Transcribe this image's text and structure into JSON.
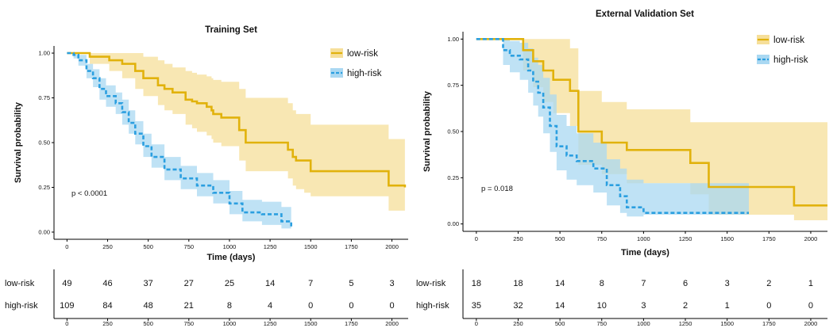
{
  "chart_data": [
    {
      "type": "line",
      "subtype": "kaplan-meier",
      "title": "Training Set",
      "xlabel": "Time (days)",
      "ylabel": "Survival probability",
      "xlim": [
        -80,
        2100
      ],
      "ylim": [
        -0.04,
        1.04
      ],
      "xticks": [
        0,
        250,
        500,
        750,
        1000,
        1250,
        1500,
        1750,
        2000
      ],
      "yticks": [
        "0.00",
        "0.25",
        "0.50",
        "0.75",
        "1.00"
      ],
      "xtick_labels": [
        "0",
        "250",
        "500",
        "750",
        "1000",
        "1250",
        "1500",
        "1750",
        "2000"
      ],
      "grid": false,
      "legend": "top-right",
      "annotation": "p < 0.0001",
      "series": [
        {
          "name": "low-risk",
          "color": "#e1b20c",
          "fill": "#f6df9a",
          "dash": false,
          "x": [
            0,
            90,
            140,
            260,
            340,
            420,
            470,
            560,
            600,
            650,
            730,
            770,
            800,
            860,
            890,
            900,
            950,
            1060,
            1100,
            1360,
            1390,
            1410,
            1460,
            1500,
            1980,
            2080
          ],
          "y": [
            1.0,
            1.0,
            0.98,
            0.96,
            0.94,
            0.9,
            0.86,
            0.82,
            0.8,
            0.78,
            0.74,
            0.73,
            0.72,
            0.7,
            0.68,
            0.66,
            0.64,
            0.57,
            0.5,
            0.46,
            0.42,
            0.4,
            0.4,
            0.34,
            0.26,
            0.25
          ],
          "lower": [
            1.0,
            1.0,
            0.94,
            0.9,
            0.86,
            0.8,
            0.76,
            0.71,
            0.68,
            0.66,
            0.6,
            0.58,
            0.56,
            0.54,
            0.52,
            0.5,
            0.48,
            0.4,
            0.34,
            0.3,
            0.26,
            0.24,
            0.22,
            0.2,
            0.12,
            0.12
          ],
          "upper": [
            1.0,
            1.0,
            1.0,
            1.0,
            1.0,
            1.0,
            0.98,
            0.96,
            0.94,
            0.92,
            0.9,
            0.89,
            0.88,
            0.87,
            0.86,
            0.85,
            0.84,
            0.8,
            0.75,
            0.72,
            0.68,
            0.66,
            0.66,
            0.6,
            0.52,
            0.5
          ]
        },
        {
          "name": "high-risk",
          "color": "#2b9fe0",
          "fill": "#aad8f2",
          "dash": true,
          "x": [
            0,
            40,
            70,
            120,
            160,
            200,
            240,
            300,
            340,
            380,
            420,
            470,
            520,
            600,
            700,
            800,
            900,
            1000,
            1080,
            1200,
            1320,
            1370,
            1380
          ],
          "y": [
            1.0,
            0.99,
            0.96,
            0.9,
            0.86,
            0.8,
            0.76,
            0.72,
            0.67,
            0.61,
            0.55,
            0.48,
            0.42,
            0.35,
            0.3,
            0.26,
            0.22,
            0.16,
            0.11,
            0.1,
            0.06,
            0.06,
            0.02
          ],
          "lower": [
            1.0,
            0.97,
            0.93,
            0.86,
            0.81,
            0.74,
            0.7,
            0.66,
            0.6,
            0.55,
            0.49,
            0.42,
            0.36,
            0.29,
            0.24,
            0.2,
            0.16,
            0.1,
            0.06,
            0.04,
            0.02,
            0.02,
            0.0
          ],
          "upper": [
            1.0,
            1.0,
            0.99,
            0.94,
            0.91,
            0.86,
            0.82,
            0.78,
            0.74,
            0.68,
            0.62,
            0.55,
            0.49,
            0.42,
            0.37,
            0.33,
            0.29,
            0.23,
            0.18,
            0.17,
            0.14,
            0.14,
            0.08
          ]
        }
      ],
      "risk_table": {
        "times": [
          "0",
          "250",
          "500",
          "750",
          "1000",
          "1250",
          "1500",
          "1750",
          "2000"
        ],
        "rows": [
          {
            "label": "low-risk",
            "counts": [
              "49",
              "46",
              "37",
              "27",
              "25",
              "14",
              "7",
              "5",
              "3"
            ]
          },
          {
            "label": "high-risk",
            "counts": [
              "109",
              "84",
              "48",
              "21",
              "8",
              "4",
              "0",
              "0",
              "0"
            ]
          }
        ]
      }
    },
    {
      "type": "line",
      "subtype": "kaplan-meier",
      "title": "External Validation Set",
      "xlabel": "Time (days)",
      "ylabel": "Survival probability",
      "xlim": [
        -80,
        2100
      ],
      "ylim": [
        -0.04,
        1.04
      ],
      "xticks": [
        0,
        250,
        500,
        750,
        1000,
        1250,
        1500,
        1750,
        2000
      ],
      "yticks": [
        "0.00",
        "0.25",
        "0.50",
        "0.75",
        "1.00"
      ],
      "xtick_labels": [
        "0",
        "250",
        "500",
        "750",
        "1000",
        "1250",
        "1500",
        "1750",
        "2000"
      ],
      "grid": false,
      "legend": "top-right",
      "annotation": "p = 0.018",
      "series": [
        {
          "name": "low-risk",
          "color": "#e1b20c",
          "fill": "#f6df9a",
          "dash": false,
          "x": [
            0,
            280,
            340,
            400,
            460,
            560,
            610,
            750,
            900,
            1280,
            1390,
            1900,
            2100
          ],
          "y": [
            1.0,
            0.94,
            0.88,
            0.83,
            0.78,
            0.72,
            0.5,
            0.44,
            0.4,
            0.33,
            0.2,
            0.1,
            0.1
          ],
          "lower": [
            1.0,
            0.83,
            0.74,
            0.66,
            0.6,
            0.53,
            0.32,
            0.27,
            0.22,
            0.16,
            0.05,
            0.02,
            0.02
          ],
          "upper": [
            1.0,
            1.0,
            1.0,
            1.0,
            1.0,
            0.95,
            0.72,
            0.66,
            0.62,
            0.55,
            0.55,
            0.55,
            0.55
          ]
        },
        {
          "name": "high-risk",
          "color": "#2b9fe0",
          "fill": "#aad8f2",
          "dash": true,
          "x": [
            0,
            160,
            200,
            260,
            310,
            340,
            370,
            400,
            440,
            480,
            540,
            600,
            700,
            780,
            860,
            900,
            1000,
            1630
          ],
          "y": [
            1.0,
            0.94,
            0.91,
            0.89,
            0.83,
            0.77,
            0.71,
            0.63,
            0.53,
            0.42,
            0.37,
            0.34,
            0.3,
            0.21,
            0.15,
            0.09,
            0.06,
            0.06
          ],
          "lower": [
            1.0,
            0.86,
            0.82,
            0.78,
            0.71,
            0.64,
            0.58,
            0.49,
            0.39,
            0.29,
            0.24,
            0.21,
            0.17,
            0.1,
            0.06,
            0.04,
            0.05,
            0.05
          ],
          "upper": [
            1.0,
            1.0,
            0.99,
            0.98,
            0.95,
            0.9,
            0.86,
            0.79,
            0.7,
            0.59,
            0.53,
            0.49,
            0.44,
            0.35,
            0.3,
            0.24,
            0.22,
            0.22
          ]
        }
      ],
      "risk_table": {
        "times": [
          "0",
          "250",
          "500",
          "750",
          "1000",
          "1250",
          "1500",
          "1750",
          "2000"
        ],
        "rows": [
          {
            "label": "low-risk",
            "counts": [
              "18",
              "18",
              "14",
              "8",
              "7",
              "6",
              "3",
              "2",
              "1"
            ]
          },
          {
            "label": "high-risk",
            "counts": [
              "35",
              "32",
              "14",
              "10",
              "3",
              "2",
              "1",
              "0",
              "0"
            ]
          }
        ]
      }
    }
  ]
}
